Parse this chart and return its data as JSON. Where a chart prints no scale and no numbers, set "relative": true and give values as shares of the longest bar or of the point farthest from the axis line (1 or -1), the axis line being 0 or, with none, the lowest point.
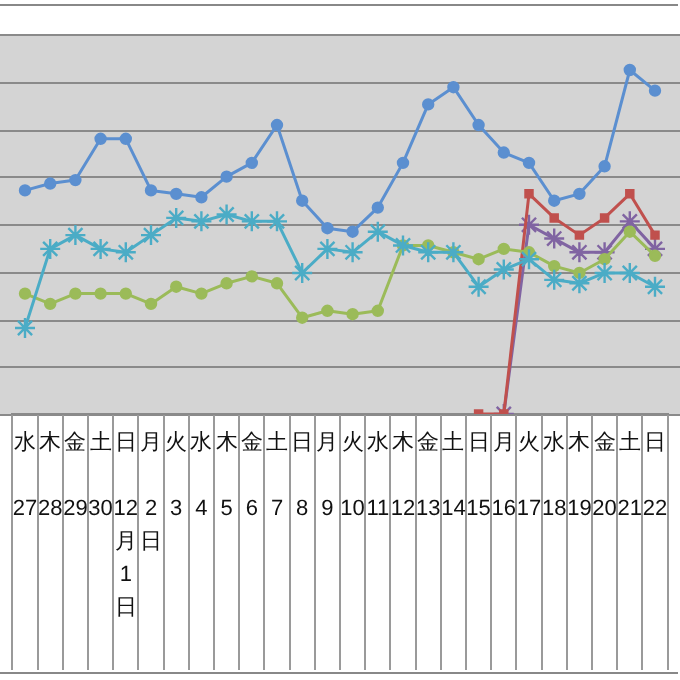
{
  "chart_data": {
    "type": "line",
    "relative": true,
    "grid": true,
    "legend": false,
    "line_style": "solid",
    "categories": [
      "水\n27",
      "木\n28",
      "金\n29",
      "土\n30",
      "日\n12月1日",
      "月\n2日",
      "火\n3",
      "水\n4",
      "木\n5",
      "金\n6",
      "土\n7",
      "日\n8",
      "月\n9",
      "火\n10",
      "水\n11",
      "木\n12",
      "金\n13",
      "土\n14",
      "日\n15",
      "月\n16",
      "火\n17",
      "水\n18",
      "木\n19",
      "金\n20",
      "土\n21",
      "日\n22"
    ],
    "series": [
      {
        "color": "#5b8fd0",
        "marker": "circle",
        "values": [
          0.65,
          0.67,
          0.68,
          0.8,
          0.8,
          0.65,
          0.64,
          0.63,
          0.69,
          0.73,
          0.84,
          0.62,
          0.54,
          0.53,
          0.6,
          0.73,
          0.9,
          0.95,
          0.84,
          0.76,
          0.73,
          0.62,
          0.64,
          0.72,
          1,
          0.94
        ]
      },
      {
        "color": "#4bacc6",
        "marker": "cross",
        "values": [
          0.25,
          0.48,
          0.52,
          0.48,
          0.47,
          0.52,
          0.57,
          0.56,
          0.58,
          0.56,
          0.56,
          0.41,
          0.48,
          0.47,
          0.53,
          0.49,
          0.47,
          0.47,
          0.37,
          0.42,
          0.45,
          0.39,
          0.38,
          0.41,
          0.41,
          0.37
        ]
      },
      {
        "color": "#9bbb59",
        "marker": "circle",
        "values": [
          0.35,
          0.32,
          0.35,
          0.35,
          0.35,
          0.32,
          0.37,
          0.35,
          0.38,
          0.4,
          0.38,
          0.28,
          0.3,
          0.29,
          0.3,
          0.49,
          0.49,
          0.47,
          0.45,
          0.48,
          0.47,
          0.43,
          0.41,
          0.45,
          0.53,
          0.46
        ]
      },
      {
        "color": "#c0504d",
        "marker": "square",
        "values": [
          null,
          null,
          null,
          null,
          null,
          null,
          null,
          null,
          null,
          null,
          null,
          null,
          null,
          null,
          null,
          null,
          null,
          null,
          0,
          0,
          0.64,
          0.57,
          0.52,
          0.57,
          0.64,
          0.52
        ]
      },
      {
        "color": "#8064a2",
        "marker": "cross",
        "values": [
          null,
          null,
          null,
          null,
          null,
          null,
          null,
          null,
          null,
          null,
          null,
          null,
          null,
          null,
          null,
          null,
          null,
          null,
          null,
          0,
          0.55,
          0.51,
          0.47,
          0.47,
          0.56,
          0.48
        ]
      }
    ]
  }
}
